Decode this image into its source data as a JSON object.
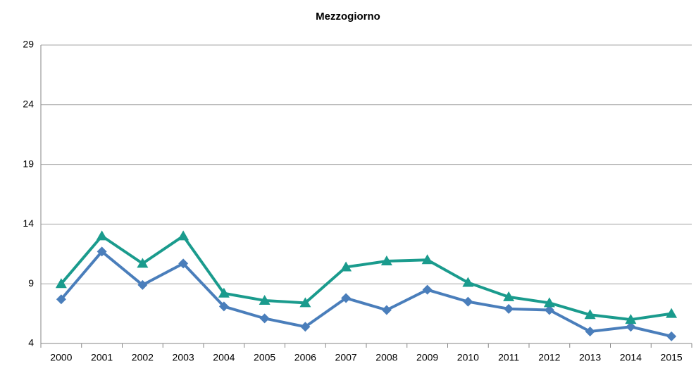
{
  "chart_data": {
    "type": "line",
    "title": "Mezzogiorno",
    "categories": [
      "2000",
      "2001",
      "2002",
      "2003",
      "2004",
      "2005",
      "2006",
      "2007",
      "2008",
      "2009",
      "2010",
      "2011",
      "2012",
      "2013",
      "2014",
      "2015"
    ],
    "series": [
      {
        "color": "#4a7ebb",
        "marker": "diamond",
        "values": [
          7.7,
          11.7,
          8.9,
          10.7,
          7.1,
          6.1,
          5.4,
          7.8,
          6.8,
          8.5,
          7.5,
          6.9,
          6.8,
          5.0,
          5.4,
          4.6
        ]
      },
      {
        "color": "#1a9b8d",
        "marker": "triangle",
        "values": [
          9.0,
          13.0,
          10.7,
          13.0,
          8.2,
          7.6,
          7.4,
          10.4,
          10.9,
          11.0,
          9.1,
          7.9,
          7.4,
          6.4,
          6.0,
          6.5
        ]
      }
    ],
    "ylim": [
      4,
      29
    ],
    "yticks": [
      4,
      9,
      14,
      19,
      24,
      29
    ],
    "grid": true
  }
}
